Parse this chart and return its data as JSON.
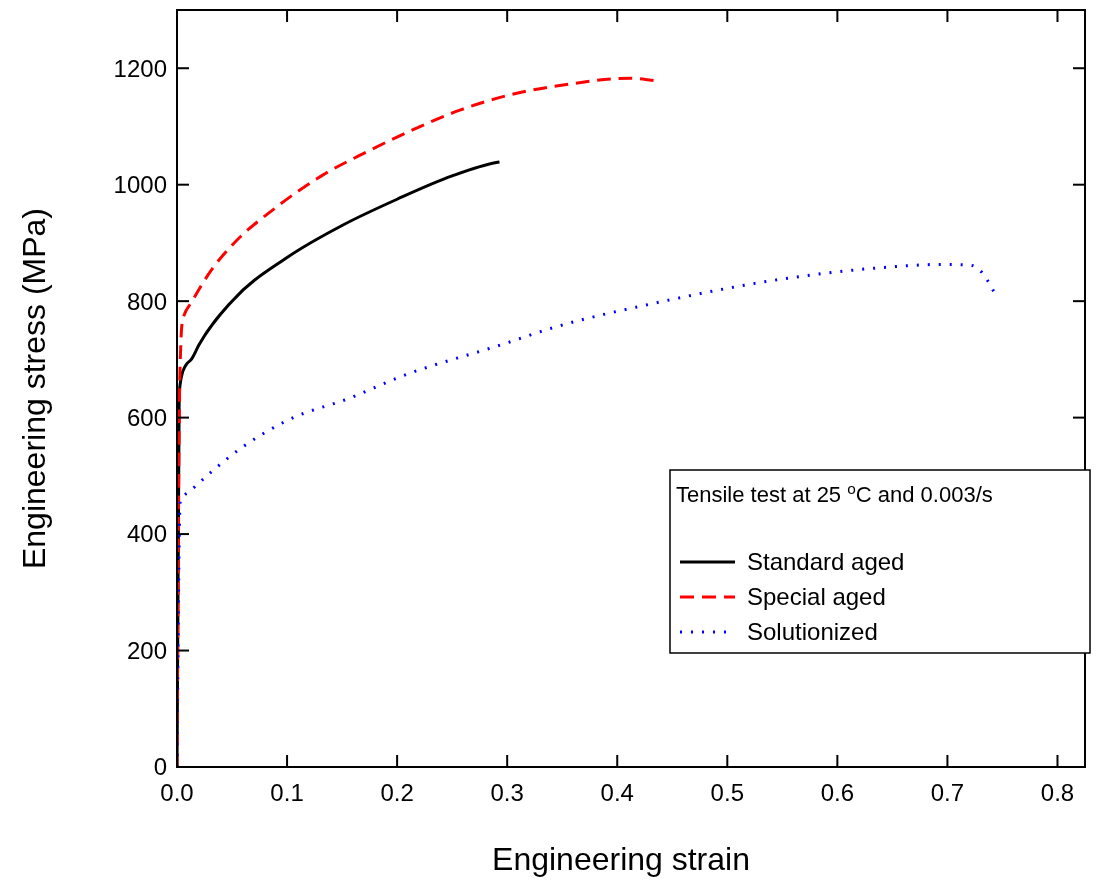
{
  "chart_data": {
    "type": "line",
    "xlabel": "Engineering strain",
    "ylabel": "Engineering stress (MPa)",
    "legend_title": "Tensile test at 25 $^{o}$C and 0.003/s",
    "legend": "right",
    "grid": false,
    "xlim": [
      0,
      0.825
    ],
    "xticks": [
      {
        "value": 0,
        "label": "0.0"
      },
      0.1,
      0.2,
      0.3,
      0.4,
      0.5,
      0.6,
      0.7,
      0.8
    ],
    "ylim": [
      0,
      1300
    ],
    "yticks": [
      0,
      200,
      400,
      600,
      800,
      1000,
      1200
    ],
    "series": [
      {
        "name": "Standard aged",
        "color": "#000000",
        "line_style": "solid",
        "x": [
          0,
          0.002,
          0.004,
          0.008,
          0.013,
          0.02,
          0.05,
          0.1,
          0.15,
          0.2,
          0.25,
          0.29,
          0.293
        ],
        "values": [
          0,
          640,
          670,
          690,
          700,
          725,
          800,
          875,
          930,
          975,
          1015,
          1038,
          1039
        ]
      },
      {
        "name": "Special aged",
        "color": "#ff0000",
        "line_style": "dashed",
        "x": [
          0,
          0.002,
          0.003,
          0.005,
          0.0145,
          0.033,
          0.05,
          0.09,
          0.132,
          0.172,
          0.214,
          0.257,
          0.302,
          0.354,
          0.412,
          0.433
        ],
        "values": [
          0,
          600,
          700,
          767,
          802,
          858,
          896,
          961,
          1016,
          1056,
          1094,
          1128,
          1154,
          1172,
          1183,
          1179
        ]
      },
      {
        "name": "Solutionized",
        "color": "#0000ff",
        "line_style": "dotted",
        "x": [
          0,
          0.003,
          0.012,
          0.057,
          0.1,
          0.159,
          0.2,
          0.296,
          0.341,
          0.435,
          0.561,
          0.643,
          0.693,
          0.72,
          0.731,
          0.742
        ],
        "values": [
          0,
          458,
          474,
          546,
          595,
          635,
          668,
          726,
          754,
          797,
          841,
          858,
          863,
          862,
          850,
          817
        ]
      }
    ]
  }
}
